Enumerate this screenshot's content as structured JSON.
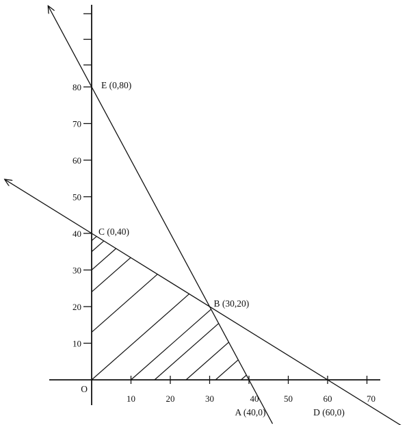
{
  "chart_data": {
    "type": "line",
    "title": "",
    "xlabel": "",
    "ylabel": "",
    "origin_label": "O",
    "x_ticks": [
      10,
      20,
      30,
      40,
      50,
      60,
      70
    ],
    "y_ticks": [
      10,
      20,
      30,
      40,
      50,
      60,
      70,
      80
    ],
    "lines": [
      {
        "from": [
          0,
          80
        ],
        "to": [
          40,
          0
        ]
      },
      {
        "from": [
          0,
          40
        ],
        "to": [
          60,
          0
        ]
      }
    ],
    "feasible_region": [
      [
        0,
        0
      ],
      [
        0,
        40
      ],
      [
        30,
        20
      ],
      [
        40,
        0
      ]
    ],
    "hatched": true,
    "points": [
      {
        "label": "O",
        "x": 0,
        "y": 0
      },
      {
        "label": "A (40,0)",
        "x": 40,
        "y": 0
      },
      {
        "label": "B (30,20)",
        "x": 30,
        "y": 20
      },
      {
        "label": "C (0,40)",
        "x": 0,
        "y": 40
      },
      {
        "label": "D (60,0)",
        "x": 60,
        "y": 0
      },
      {
        "label": "E (0,80)",
        "x": 0,
        "y": 80
      }
    ],
    "colors": {
      "line": "#111111",
      "background": "#ffffff"
    }
  }
}
